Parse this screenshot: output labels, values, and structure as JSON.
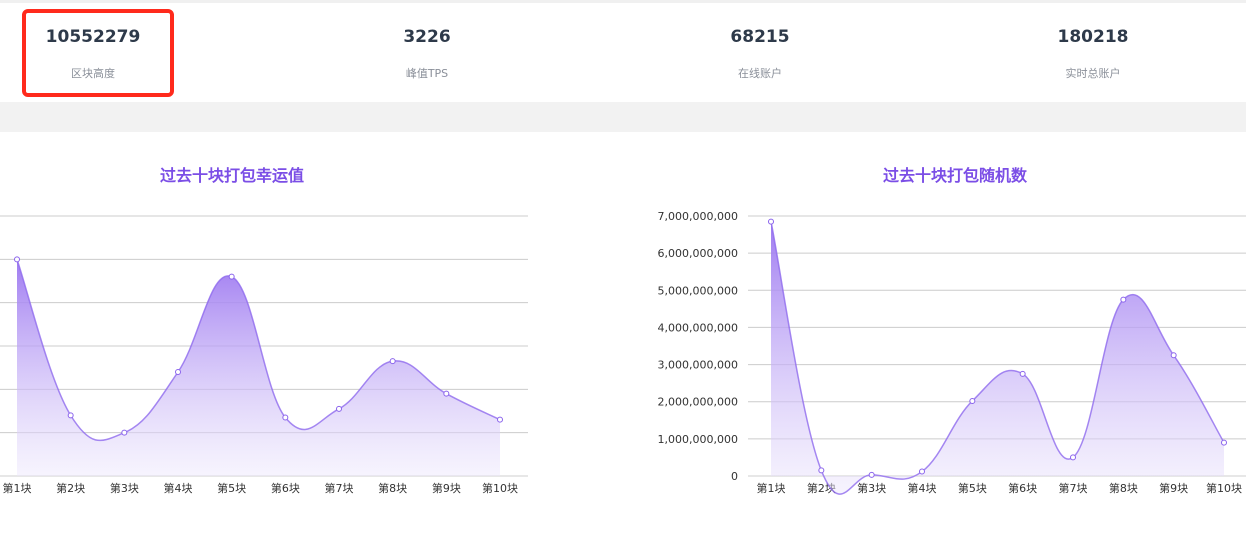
{
  "stats": [
    {
      "value": "10552279",
      "label": "区块高度"
    },
    {
      "value": "3226",
      "label": "峰值TPS"
    },
    {
      "value": "68215",
      "label": "在线账户"
    },
    {
      "value": "180218",
      "label": "实时总账户"
    }
  ],
  "colors": {
    "accent": "#7b4ee6",
    "highlight": "#ff2a1c",
    "area_top": "#9f7cf2",
    "area_bottom": "#f3effd"
  },
  "chart_data": [
    {
      "type": "area",
      "title": "过去十块打包幸运值",
      "categories": [
        "第1块",
        "第2块",
        "第3块",
        "第4块",
        "第5块",
        "第6块",
        "第7块",
        "第8块",
        "第9块",
        "第10块"
      ],
      "values": [
        5.0,
        1.4,
        1.0,
        2.4,
        4.6,
        1.35,
        1.55,
        2.65,
        1.9,
        1.3
      ],
      "ylim": [
        0,
        6
      ],
      "y_tick_step": 1,
      "show_y_labels": false,
      "grid": true
    },
    {
      "type": "area",
      "title": "过去十块打包随机数",
      "categories": [
        "第1块",
        "第2块",
        "第3块",
        "第4块",
        "第5块",
        "第6块",
        "第7块",
        "第8块",
        "第9块",
        "第10块"
      ],
      "values": [
        6850000000,
        150000000,
        30000000,
        120000000,
        2020000000,
        2750000000,
        500000000,
        4750000000,
        3250000000,
        900000000
      ],
      "ylim": [
        0,
        7000000000
      ],
      "y_ticks": [
        "0",
        "1,000,000,000",
        "2,000,000,000",
        "3,000,000,000",
        "4,000,000,000",
        "5,000,000,000",
        "6,000,000,000",
        "7,000,000,000"
      ],
      "show_y_labels": true,
      "grid": true
    }
  ]
}
